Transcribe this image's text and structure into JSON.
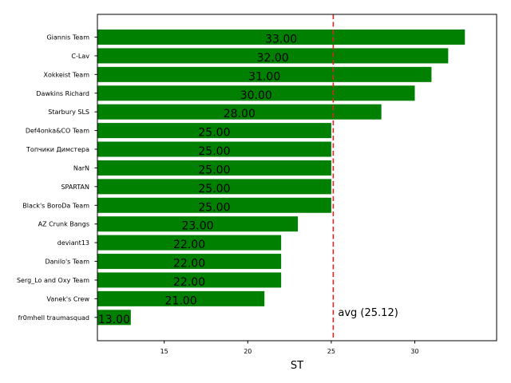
{
  "chart_data": {
    "type": "bar",
    "orientation": "horizontal",
    "categories": [
      "Giannis Team",
      "C-Lav",
      "Xokkeist Team",
      "Dawkins Richard",
      "Starbury SLS",
      "Def4onka&CO Team",
      "Топчики Димстера",
      "NarN",
      "SPARTAN",
      "Black's BoroDa Team",
      "AZ Crunk Bangs",
      "deviant13",
      "Danilo's Team",
      "Serg_Lo and Oxy Team",
      "Vanek's Crew",
      "fr0mhell traumasquad"
    ],
    "values": [
      33,
      32,
      31,
      30,
      28,
      25,
      25,
      25,
      25,
      25,
      23,
      22,
      22,
      22,
      21,
      13
    ],
    "value_labels": [
      "33.00",
      "32.00",
      "31.00",
      "30.00",
      "28.00",
      "25.00",
      "25.00",
      "25.00",
      "25.00",
      "25.00",
      "23.00",
      "22.00",
      "22.00",
      "22.00",
      "21.00",
      "13.00"
    ],
    "xlabel": "ST",
    "xlim": [
      11,
      34.9
    ],
    "xticks": [
      15,
      20,
      25,
      30
    ],
    "grid": false,
    "bar_color": "#008000",
    "reference_line": {
      "value": 25.12,
      "label": "avg (25.12)",
      "color": "#d62728",
      "style": "dashed"
    }
  }
}
